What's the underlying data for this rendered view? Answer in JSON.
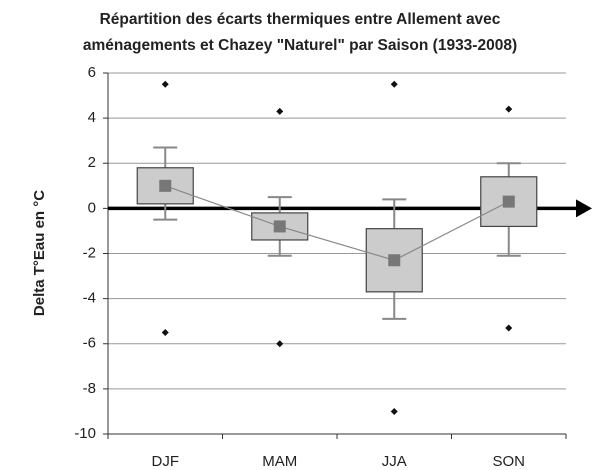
{
  "chart_data": {
    "type": "box",
    "title": [
      "Répartition des écarts thermiques entre Allement avec",
      "aménagements et Chazey \"Naturel\" par Saison (1933-2008)"
    ],
    "y_label": "Delta T°Eau en °C",
    "categories": [
      "DJF",
      "MAM",
      "JJA",
      "SON"
    ],
    "whisker_high": [
      2.7,
      0.5,
      0.4,
      2.0
    ],
    "q3": [
      1.8,
      -0.2,
      -0.9,
      1.4
    ],
    "q1": [
      0.2,
      -1.4,
      -3.7,
      -0.8
    ],
    "whisker_low": [
      -0.5,
      -2.1,
      -4.9,
      -2.1
    ],
    "mean": [
      1.0,
      -0.8,
      -2.3,
      0.3
    ],
    "outliers": [
      [
        5.5,
        -5.5
      ],
      [
        4.3,
        -6
      ],
      [
        5.5,
        -9
      ],
      [
        4.4,
        -5.3
      ]
    ],
    "ylim": [
      -10,
      6
    ],
    "yticks": [
      -10,
      -8,
      -6,
      -4,
      -2,
      0,
      2,
      4,
      6
    ],
    "grid": true,
    "box_color": "#cccccc",
    "mean_color": "#777777"
  }
}
